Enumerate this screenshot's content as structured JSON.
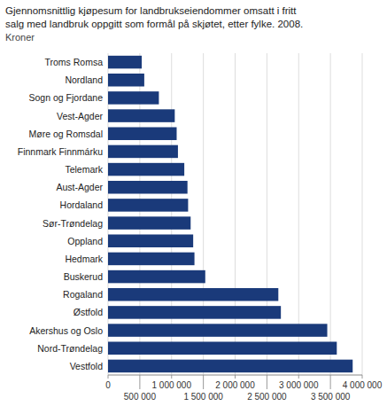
{
  "chart_data": {
    "type": "bar",
    "orientation": "horizontal",
    "title": "Gjennomsnittlig kjøpesum for landbrukseiendommer omsatt i fritt\nsalg med landbruk oppgitt som formål på skjøtet, etter fylke. 2008.",
    "subtitle": "Kroner",
    "categories": [
      "Vestfold",
      "Nord-Trøndelag",
      "Akershus og Oslo",
      "Østfold",
      "Rogaland",
      "Buskerud",
      "Hedmark",
      "Oppland",
      "Sør-Trøndelag",
      "Hordaland",
      "Aust-Agder",
      "Telemark",
      "Finnmark Finnmárku",
      "Møre og Romsdal",
      "Vest-Agder",
      "Sogn og Fjordane",
      "Nordland",
      "Troms Romsa"
    ],
    "values": [
      3850000,
      3600000,
      3450000,
      2720000,
      2680000,
      1530000,
      1360000,
      1340000,
      1300000,
      1260000,
      1250000,
      1200000,
      1100000,
      1080000,
      1050000,
      800000,
      570000,
      530000
    ],
    "color": "#1a3a7a",
    "xlim": [
      0,
      4000000
    ],
    "xticks": [
      0,
      {
        "value": 500000,
        "label": "500 000"
      },
      {
        "value": 1000000,
        "label": "1 000 000"
      },
      {
        "value": 1500000,
        "label": "1 500 000"
      },
      {
        "value": 2000000,
        "label": "2 000 000"
      },
      {
        "value": 2500000,
        "label": "2 500 000"
      },
      {
        "value": 3000000,
        "label": "3 000 000"
      },
      {
        "value": 3500000,
        "label": "3 500 000"
      },
      {
        "value": 4000000,
        "label": "4 000 000"
      }
    ],
    "grid": true
  }
}
